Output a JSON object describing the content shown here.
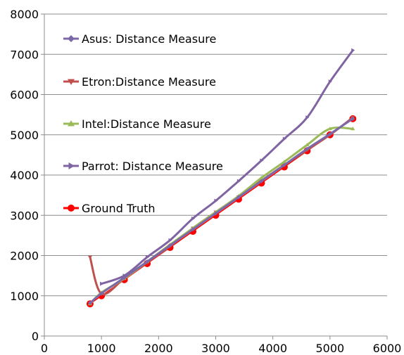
{
  "chart_data": {
    "type": "line",
    "title": "",
    "xlabel": "",
    "ylabel": "",
    "xlim": [
      0,
      6000
    ],
    "ylim": [
      0,
      8000
    ],
    "x_ticks": [
      0,
      1000,
      2000,
      3000,
      4000,
      5000,
      6000
    ],
    "y_ticks": [
      0,
      1000,
      2000,
      3000,
      4000,
      5000,
      6000,
      7000,
      8000
    ],
    "x_tick_labels": [
      "0",
      "1000",
      "2000",
      "3000",
      "4000",
      "5000",
      "6000"
    ],
    "y_tick_labels": [
      "0",
      "1000",
      "2000",
      "3000",
      "4000",
      "5000",
      "6000",
      "7000",
      "8000"
    ],
    "grid": "horizontal",
    "legend_position": "upper-left inside",
    "series": [
      {
        "name": "Asus: Distance Measure",
        "color": "#7b68a8",
        "marker": "diamond",
        "x": [
          800,
          1000,
          1400,
          1800,
          2200,
          2600,
          3000,
          3400,
          3800,
          4200,
          4600,
          5000,
          5400
        ],
        "y": [
          820,
          1060,
          1450,
          1850,
          2250,
          2650,
          3050,
          3450,
          3850,
          4250,
          4650,
          5020,
          5400
        ]
      },
      {
        "name": "Etron:Distance Measure",
        "color": "#c0504d",
        "marker": "triangle-down",
        "x": [
          800,
          1000,
          1400,
          1800,
          2200,
          2600,
          3000,
          3400,
          3800,
          4200,
          4600,
          5000,
          5400
        ],
        "y": [
          1960,
          1050,
          1430,
          1830,
          2230,
          2680,
          3080,
          3460,
          3860,
          4250,
          4620,
          5000,
          5430
        ]
      },
      {
        "name": "Intel:Distance Measure",
        "color": "#9bbb59",
        "marker": "triangle-up",
        "x": [
          800,
          1000,
          1400,
          1800,
          2200,
          2600,
          3000,
          3400,
          3800,
          4200,
          4600,
          5000,
          5400
        ],
        "y": [
          800,
          1080,
          1430,
          1850,
          2270,
          2680,
          3080,
          3480,
          3930,
          4330,
          4750,
          5150,
          5150
        ]
      },
      {
        "name": "Parrot: Distance Measure",
        "color": "#8064a2",
        "marker": "triangle-right",
        "x": [
          1000,
          1400,
          1800,
          2200,
          2600,
          3000,
          3400,
          3800,
          4200,
          4600,
          5000,
          5400
        ],
        "y": [
          1300,
          1500,
          1960,
          2380,
          2920,
          3360,
          3850,
          4360,
          4900,
          5430,
          6320,
          7100
        ]
      },
      {
        "name": "Ground Truth",
        "color": "#ff0000",
        "marker": "circle",
        "x": [
          800,
          1000,
          1400,
          1800,
          2200,
          2600,
          3000,
          3400,
          3800,
          4200,
          4600,
          5000,
          5400
        ],
        "y": [
          800,
          1000,
          1400,
          1800,
          2200,
          2600,
          3000,
          3400,
          3800,
          4200,
          4600,
          5000,
          5400
        ]
      }
    ]
  }
}
